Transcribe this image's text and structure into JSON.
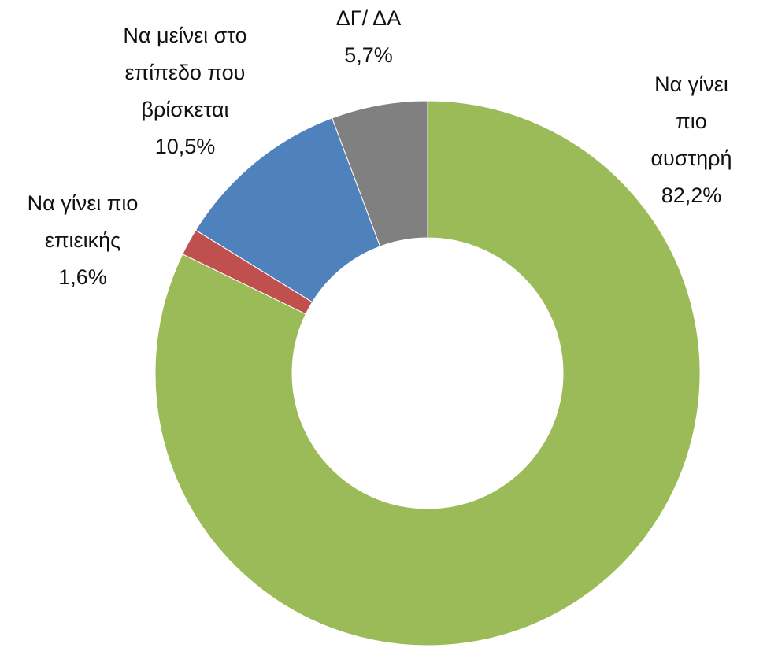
{
  "chart_data": {
    "type": "donut",
    "categories": [
      "Να γίνει πιο\nαυστηρή",
      "Να γίνει πιο\nεπιεικής",
      "Να μείνει στο\nεπίπεδο που\nβρίσκεται",
      "ΔΓ/ ΔΑ"
    ],
    "values": [
      82.2,
      1.6,
      10.5,
      5.7
    ],
    "value_labels": [
      "82,2%",
      "1,6%",
      "10,5%",
      "5,7%"
    ],
    "colors": [
      "#9bbb59",
      "#c0504d",
      "#4f81bd",
      "#808080"
    ]
  }
}
